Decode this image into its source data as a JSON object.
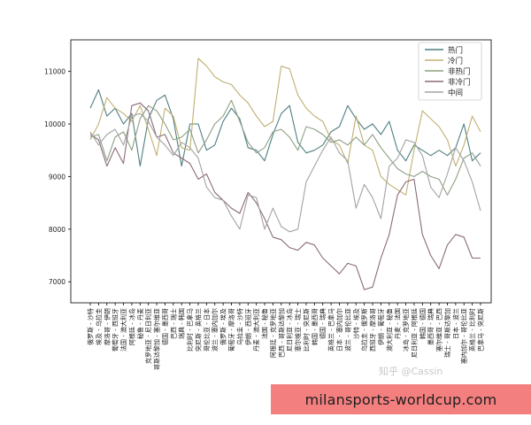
{
  "chart_data": {
    "type": "line",
    "ylim": [
      6600,
      11600
    ],
    "yticks": [
      7000,
      8000,
      9000,
      10000,
      11000
    ],
    "grid": false,
    "legend_position": "top-right",
    "categories": [
      "俄罗斯 - 沙特",
      "埃及 - 乌拉圭",
      "摩洛哥 - 伊朗",
      "葡萄牙 - 西班牙",
      "法国 - 澳大利亚",
      "阿根廷 - 冰岛",
      "秘鲁 - 丹麦",
      "克罗地亚 - 尼日利亚",
      "哥斯达黎加 - 塞尔维亚",
      "德国 - 墨西哥",
      "巴西 - 瑞士",
      "瑞典 - 韩国",
      "比利时 - 巴拿马",
      "突尼斯 - 英格兰",
      "哥伦比亚 - 日本",
      "波兰 - 塞内加尔",
      "俄罗斯 - 埃及",
      "葡萄牙 - 摩洛哥",
      "乌拉圭 - 沙特",
      "伊朗 - 西班牙",
      "丹麦 - 澳大利亚",
      "法国 - 秘鲁",
      "阿根廷 - 克罗地亚",
      "巴西 - 哥斯达黎加",
      "尼日利亚 - 冰岛",
      "塞尔维亚 - 瑞士",
      "比利时 - 突尼斯",
      "韩国 - 墨西哥",
      "德国 - 瑞典",
      "英格兰 - 巴拿马",
      "日本 - 塞内加尔",
      "波兰 - 哥伦比亚",
      "沙特 - 埃及",
      "乌拉圭 - 俄罗斯",
      "西班牙 - 摩洛哥",
      "伊朗 - 葡萄牙",
      "澳大利亚 - 秘鲁",
      "丹麦 - 法国",
      "冰岛 - 克罗地亚",
      "尼日利亚 - 阿根廷",
      "韩国 - 德国",
      "墨西哥 - 瑞典",
      "塞尔维亚 - 巴西",
      "瑞士 - 哥斯达黎加",
      "日本 - 波兰",
      "塞内加尔 - 哥伦比亚",
      "英格兰 - 比利时",
      "巴拿马 - 突尼斯"
    ],
    "series": [
      {
        "name": "热门",
        "color": "#4f7f81",
        "values": [
          10300,
          10650,
          10150,
          10300,
          10000,
          10200,
          9200,
          10100,
          10450,
          10550,
          10100,
          9200,
          10000,
          10000,
          9500,
          9600,
          10050,
          10300,
          10100,
          9550,
          9500,
          9300,
          9800,
          10200,
          10350,
          9650,
          9450,
          9500,
          9600,
          9850,
          9950,
          10350,
          10100,
          9900,
          10000,
          9800,
          10050,
          9500,
          9300,
          9600,
          9500,
          9400,
          9500,
          9400,
          9550,
          10000,
          9300,
          9450
        ]
      },
      {
        "name": "冷门",
        "color": "#bfb072",
        "values": [
          9700,
          10000,
          10500,
          10300,
          10200,
          10050,
          10350,
          9900,
          9400,
          10300,
          10150,
          9550,
          9500,
          11250,
          11100,
          10900,
          10800,
          10750,
          10550,
          10400,
          10150,
          9950,
          10050,
          11100,
          11050,
          10550,
          10300,
          10150,
          10050,
          9700,
          9600,
          9250,
          10150,
          9600,
          9500,
          9000,
          8850,
          8750,
          8650,
          9500,
          10250,
          10100,
          9950,
          9700,
          9200,
          9600,
          10150,
          9850
        ]
      },
      {
        "name": "非热门",
        "color": "#8da084",
        "values": [
          9750,
          9800,
          9300,
          9750,
          9850,
          9500,
          10100,
          10350,
          10250,
          10000,
          9700,
          9750,
          9900,
          9450,
          9700,
          10000,
          10150,
          10450,
          10050,
          9650,
          9450,
          9550,
          9850,
          9900,
          9750,
          9500,
          9950,
          9900,
          9800,
          9650,
          9700,
          9600,
          9750,
          9600,
          9800,
          9550,
          9350,
          9150,
          9050,
          9000,
          9100,
          9000,
          8950,
          8650,
          8950,
          9350,
          9450,
          9200
        ]
      },
      {
        "name": "非冷门",
        "color": "#8a6b78",
        "values": [
          9800,
          9700,
          9200,
          9550,
          9250,
          10350,
          10400,
          10250,
          9750,
          9800,
          9450,
          9350,
          9250,
          8950,
          9050,
          8700,
          8550,
          8400,
          8300,
          8700,
          8500,
          8200,
          7850,
          7800,
          7650,
          7600,
          7750,
          7700,
          7450,
          7300,
          7150,
          7350,
          7300,
          6850,
          6900,
          7450,
          7900,
          8650,
          8900,
          8950,
          7900,
          7500,
          7250,
          7700,
          7900,
          7850,
          7450,
          7450
        ]
      },
      {
        "name": "中间",
        "color": "#a3a3a3",
        "values": [
          9850,
          9600,
          9800,
          9900,
          9600,
          10150,
          10200,
          10050,
          9750,
          9600,
          9400,
          9650,
          9550,
          9350,
          8800,
          8600,
          8550,
          8250,
          8000,
          8650,
          8600,
          8000,
          8400,
          8050,
          7950,
          8000,
          8900,
          9200,
          9500,
          9750,
          9450,
          9300,
          8400,
          8850,
          8600,
          8200,
          9200,
          9350,
          9700,
          9650,
          9400,
          8800,
          8600,
          9050,
          9550,
          9300,
          8900,
          8350
        ]
      }
    ]
  },
  "watermark": "知乎 @Cassin",
  "banner_text": "milansports-worldcup.com",
  "axis_color": "#000000",
  "banner_color": "#f47f7f"
}
